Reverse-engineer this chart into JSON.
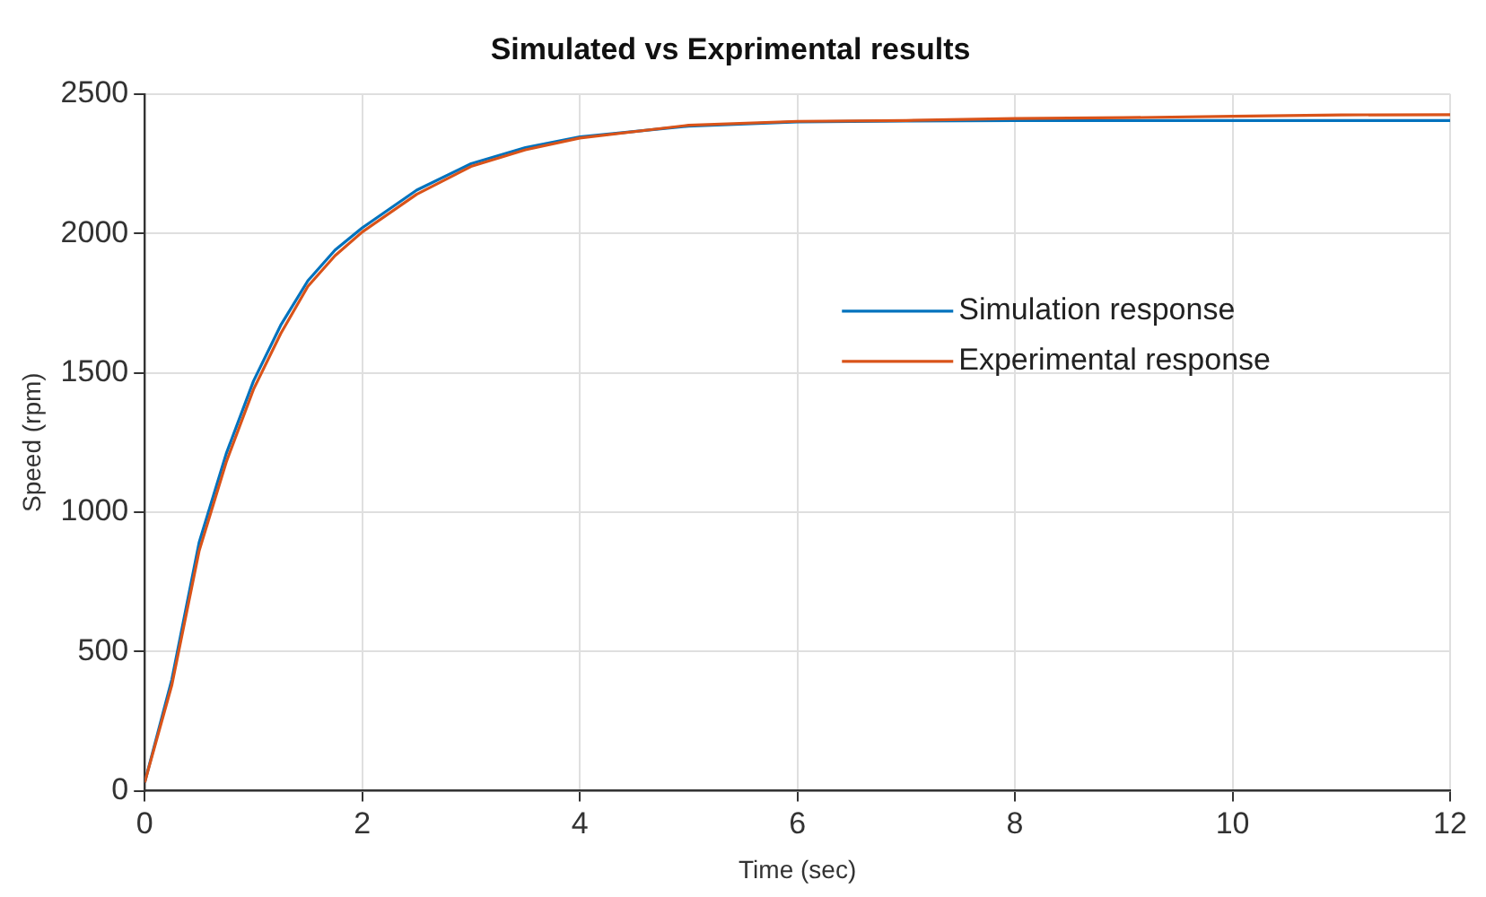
{
  "chart_data": {
    "type": "line",
    "title": "Simulated vs Exprimental results",
    "xlabel": "Time (sec)",
    "ylabel": "Speed (rpm)",
    "xlim": [
      0,
      12
    ],
    "xticks": [
      0,
      2,
      4,
      6,
      8,
      10,
      12
    ],
    "ylim": [
      0,
      2500
    ],
    "yticks": [
      0,
      500,
      1000,
      1500,
      2000,
      2500
    ],
    "grid": true,
    "legend": "right",
    "line_style": "solid",
    "marker": "none",
    "series": [
      {
        "name": "Simulation response",
        "color": "#0072bd",
        "x": [
          0,
          0.25,
          0.5,
          0.75,
          1,
          1.25,
          1.5,
          1.75,
          2,
          2.5,
          3,
          3.5,
          4,
          5,
          6,
          7,
          8,
          10,
          12
        ],
        "values": [
          30,
          400,
          890,
          1210,
          1470,
          1670,
          1830,
          1940,
          2020,
          2155,
          2250,
          2308,
          2346,
          2385,
          2400,
          2403,
          2405,
          2405,
          2405
        ]
      },
      {
        "name": "Experimental response",
        "color": "#d95319",
        "x": [
          0,
          0.25,
          0.5,
          0.75,
          1,
          1.25,
          1.5,
          1.75,
          2,
          2.5,
          3,
          3.5,
          4,
          5,
          6,
          7,
          8,
          9,
          10,
          11,
          12
        ],
        "values": [
          30,
          380,
          860,
          1180,
          1440,
          1640,
          1810,
          1920,
          2005,
          2140,
          2240,
          2300,
          2342,
          2388,
          2402,
          2405,
          2412,
          2415,
          2420,
          2425,
          2426
        ]
      }
    ]
  }
}
